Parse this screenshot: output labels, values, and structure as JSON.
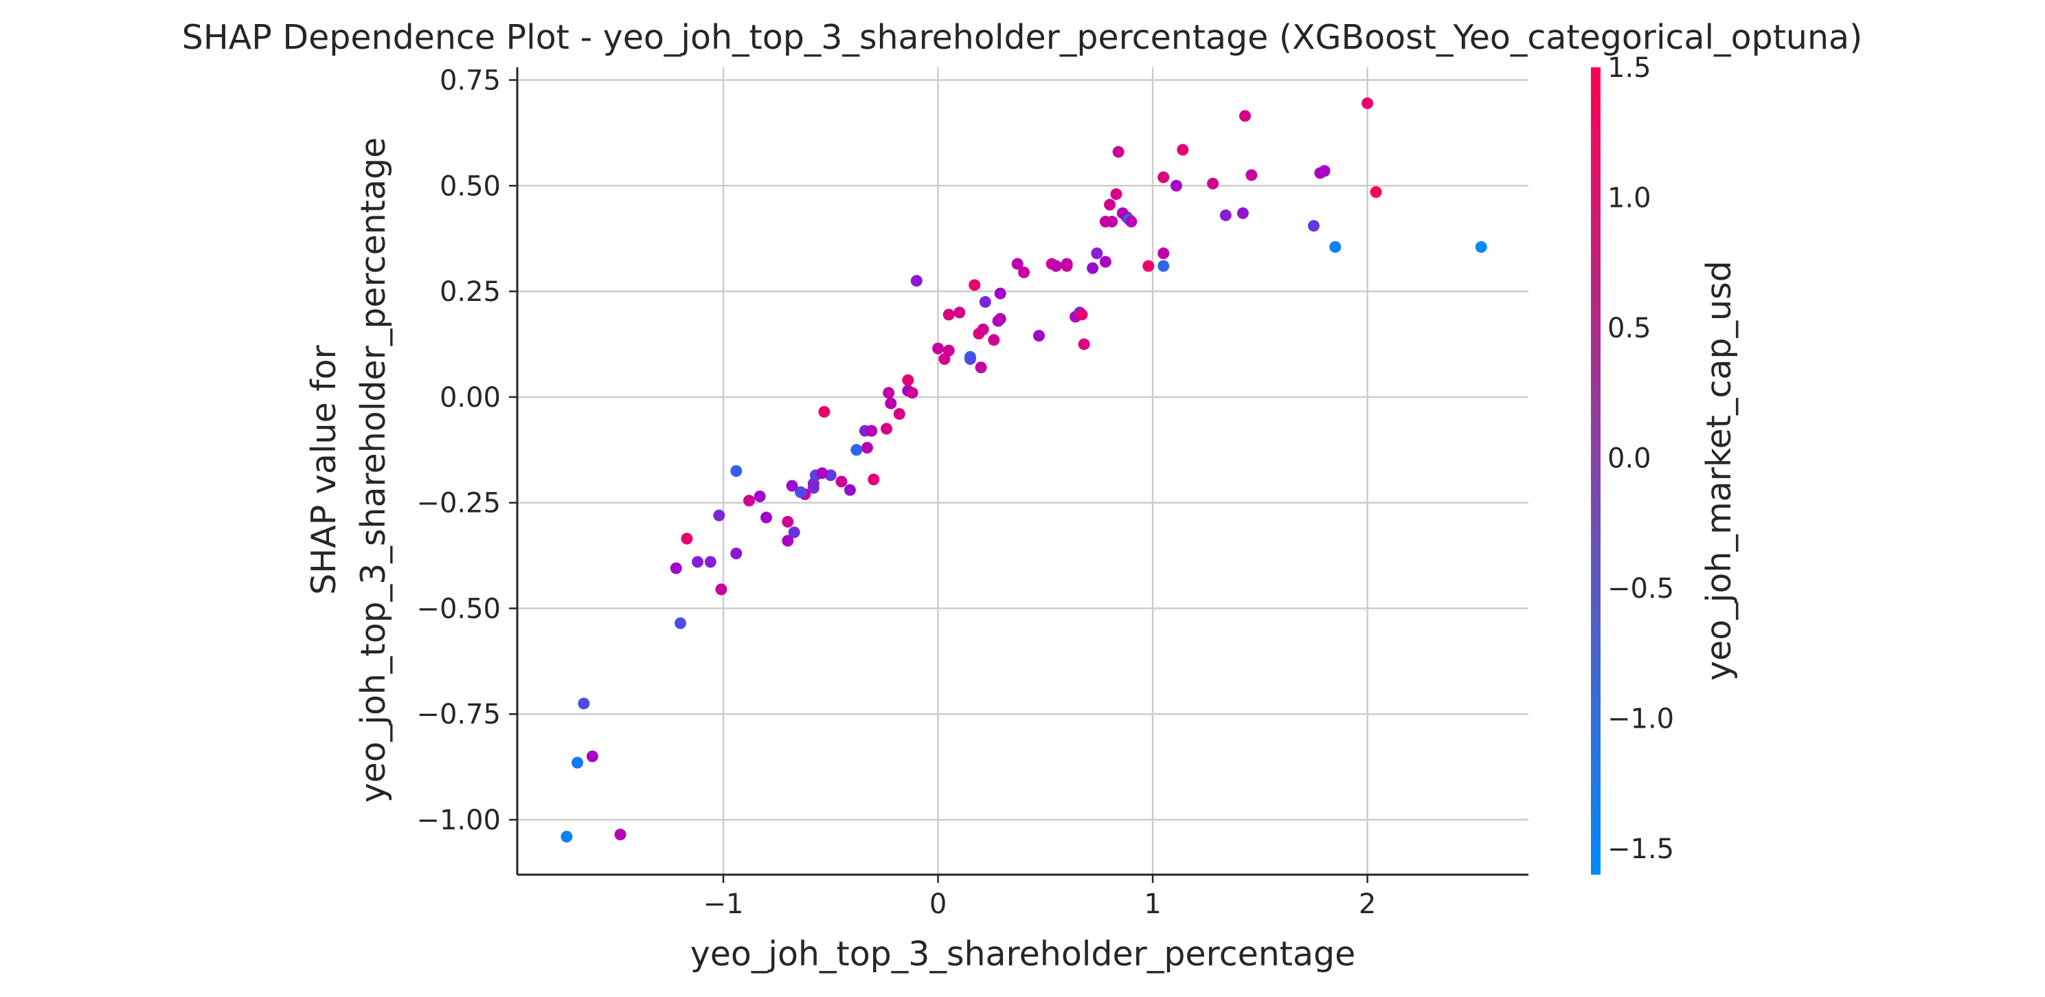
{
  "chart_data": {
    "type": "scatter",
    "title": "SHAP Dependence Plot - yeo_joh_top_3_shareholder_percentage (XGBoost_Yeo_categorical_optuna)",
    "xlabel": "yeo_joh_top_3_shareholder_percentage",
    "ylabel_line1": "SHAP value for",
    "ylabel_line2": "yeo_joh_top_3_shareholder_percentage",
    "colorbar_label": "yeo_joh_market_cap_usd",
    "xlim": [
      -1.96,
      2.75
    ],
    "ylim": [
      -1.13,
      0.78
    ],
    "grid": true,
    "x_ticks": [
      {
        "value": -1,
        "label": "−1"
      },
      {
        "value": 0,
        "label": "0"
      },
      {
        "value": 1,
        "label": "1"
      },
      {
        "value": 2,
        "label": "2"
      }
    ],
    "y_ticks": [
      {
        "value": 0.75,
        "label": "0.75"
      },
      {
        "value": 0.5,
        "label": "0.50"
      },
      {
        "value": 0.25,
        "label": "0.25"
      },
      {
        "value": 0.0,
        "label": "0.00"
      },
      {
        "value": -0.25,
        "label": "−0.25"
      },
      {
        "value": -0.5,
        "label": "−0.50"
      },
      {
        "value": -0.75,
        "label": "−0.75"
      },
      {
        "value": -1.0,
        "label": "−1.00"
      }
    ],
    "color_range": [
      -1.6,
      1.5
    ],
    "colorbar_ticks": [
      {
        "value": 1.5,
        "label": "1.5"
      },
      {
        "value": 1.0,
        "label": "1.0"
      },
      {
        "value": 0.5,
        "label": "0.5"
      },
      {
        "value": 0.0,
        "label": "0.0"
      },
      {
        "value": -0.5,
        "label": "−0.5"
      },
      {
        "value": -1.0,
        "label": "−1.0"
      },
      {
        "value": -1.5,
        "label": "−1.5"
      }
    ],
    "colormap": [
      "#008afb",
      "#ff0052"
    ],
    "points": [
      {
        "x": -1.73,
        "y": -1.04,
        "c": -1.5
      },
      {
        "x": -1.48,
        "y": -1.035,
        "c": 0.2
      },
      {
        "x": -1.68,
        "y": -0.865,
        "c": -1.4
      },
      {
        "x": -1.61,
        "y": -0.85,
        "c": -0.1
      },
      {
        "x": -1.65,
        "y": -0.725,
        "c": -0.9
      },
      {
        "x": -1.2,
        "y": -0.535,
        "c": -0.9
      },
      {
        "x": -1.01,
        "y": -0.455,
        "c": 0.5
      },
      {
        "x": -1.22,
        "y": -0.405,
        "c": -0.1
      },
      {
        "x": -1.12,
        "y": -0.39,
        "c": -0.4
      },
      {
        "x": -1.06,
        "y": -0.39,
        "c": -0.4
      },
      {
        "x": -0.94,
        "y": -0.37,
        "c": -0.3
      },
      {
        "x": -1.17,
        "y": -0.335,
        "c": 1.1
      },
      {
        "x": -0.7,
        "y": -0.34,
        "c": 0.0
      },
      {
        "x": -0.67,
        "y": -0.32,
        "c": -0.6
      },
      {
        "x": -0.7,
        "y": -0.295,
        "c": 0.7
      },
      {
        "x": -0.8,
        "y": -0.285,
        "c": -0.1
      },
      {
        "x": -1.02,
        "y": -0.28,
        "c": -0.5
      },
      {
        "x": -0.88,
        "y": -0.245,
        "c": 0.6
      },
      {
        "x": -0.83,
        "y": -0.235,
        "c": -0.1
      },
      {
        "x": -0.62,
        "y": -0.23,
        "c": 0.5
      },
      {
        "x": -0.64,
        "y": -0.225,
        "c": -0.9
      },
      {
        "x": -0.58,
        "y": -0.215,
        "c": -0.6
      },
      {
        "x": -0.68,
        "y": -0.21,
        "c": -0.2
      },
      {
        "x": -0.58,
        "y": -0.205,
        "c": -0.4
      },
      {
        "x": -0.45,
        "y": -0.2,
        "c": 0.6
      },
      {
        "x": -0.41,
        "y": -0.22,
        "c": -0.2
      },
      {
        "x": -0.3,
        "y": -0.195,
        "c": 1.0
      },
      {
        "x": -0.57,
        "y": -0.185,
        "c": -0.8
      },
      {
        "x": -0.5,
        "y": -0.185,
        "c": -0.7
      },
      {
        "x": -0.54,
        "y": -0.18,
        "c": 0.0
      },
      {
        "x": -0.94,
        "y": -0.175,
        "c": -1.1
      },
      {
        "x": -0.38,
        "y": -0.125,
        "c": -1.2
      },
      {
        "x": -0.33,
        "y": -0.12,
        "c": 0.3
      },
      {
        "x": -0.34,
        "y": -0.08,
        "c": -0.5
      },
      {
        "x": -0.31,
        "y": -0.08,
        "c": 0.2
      },
      {
        "x": -0.24,
        "y": -0.075,
        "c": 0.8
      },
      {
        "x": -0.53,
        "y": -0.035,
        "c": 1.2
      },
      {
        "x": -0.18,
        "y": -0.04,
        "c": 0.8
      },
      {
        "x": -0.22,
        "y": -0.015,
        "c": 0.3
      },
      {
        "x": -0.23,
        "y": 0.01,
        "c": 0.4
      },
      {
        "x": -0.14,
        "y": 0.015,
        "c": -0.1
      },
      {
        "x": -0.12,
        "y": 0.01,
        "c": 0.6
      },
      {
        "x": -0.14,
        "y": 0.04,
        "c": 1.0
      },
      {
        "x": 0.0,
        "y": 0.115,
        "c": 0.5
      },
      {
        "x": 0.03,
        "y": 0.09,
        "c": 0.8
      },
      {
        "x": 0.05,
        "y": 0.11,
        "c": 0.6
      },
      {
        "x": 0.15,
        "y": 0.095,
        "c": -1.3
      },
      {
        "x": 0.15,
        "y": 0.09,
        "c": -0.9
      },
      {
        "x": 0.2,
        "y": 0.07,
        "c": 0.4
      },
      {
        "x": 0.19,
        "y": 0.15,
        "c": 0.9
      },
      {
        "x": 0.21,
        "y": 0.16,
        "c": 0.7
      },
      {
        "x": 0.26,
        "y": 0.135,
        "c": 0.6
      },
      {
        "x": 0.05,
        "y": 0.195,
        "c": 0.9
      },
      {
        "x": 0.1,
        "y": 0.2,
        "c": 0.7
      },
      {
        "x": 0.17,
        "y": 0.265,
        "c": 1.1
      },
      {
        "x": 0.22,
        "y": 0.225,
        "c": -0.5
      },
      {
        "x": 0.28,
        "y": 0.18,
        "c": 0.1
      },
      {
        "x": 0.29,
        "y": 0.185,
        "c": 0.2
      },
      {
        "x": 0.29,
        "y": 0.245,
        "c": -0.1
      },
      {
        "x": -0.1,
        "y": 0.275,
        "c": -0.3
      },
      {
        "x": 0.37,
        "y": 0.315,
        "c": 0.3
      },
      {
        "x": 0.4,
        "y": 0.295,
        "c": 0.5
      },
      {
        "x": 0.47,
        "y": 0.145,
        "c": -0.1
      },
      {
        "x": 0.53,
        "y": 0.315,
        "c": 0.6
      },
      {
        "x": 0.55,
        "y": 0.31,
        "c": 0.3
      },
      {
        "x": 0.6,
        "y": 0.31,
        "c": 0.7
      },
      {
        "x": 0.6,
        "y": 0.315,
        "c": 0.4
      },
      {
        "x": 0.64,
        "y": 0.19,
        "c": 0.1
      },
      {
        "x": 0.66,
        "y": 0.2,
        "c": -0.6
      },
      {
        "x": 0.67,
        "y": 0.195,
        "c": 1.1
      },
      {
        "x": 0.68,
        "y": 0.125,
        "c": 0.9
      },
      {
        "x": 0.72,
        "y": 0.305,
        "c": -0.2
      },
      {
        "x": 0.74,
        "y": 0.34,
        "c": -0.4
      },
      {
        "x": 0.78,
        "y": 0.32,
        "c": 0.0
      },
      {
        "x": 0.78,
        "y": 0.415,
        "c": 0.5
      },
      {
        "x": 0.8,
        "y": 0.455,
        "c": 0.7
      },
      {
        "x": 0.81,
        "y": 0.415,
        "c": 0.4
      },
      {
        "x": 0.83,
        "y": 0.48,
        "c": 0.8
      },
      {
        "x": 0.84,
        "y": 0.58,
        "c": 0.6
      },
      {
        "x": 0.86,
        "y": 0.435,
        "c": 0.1
      },
      {
        "x": 0.88,
        "y": 0.425,
        "c": 0.2
      },
      {
        "x": 0.89,
        "y": 0.42,
        "c": -1.3
      },
      {
        "x": 0.9,
        "y": 0.415,
        "c": 0.2
      },
      {
        "x": 0.98,
        "y": 0.31,
        "c": 1.2
      },
      {
        "x": 1.05,
        "y": 0.31,
        "c": -1.2
      },
      {
        "x": 1.05,
        "y": 0.34,
        "c": 0.3
      },
      {
        "x": 1.05,
        "y": 0.52,
        "c": 0.9
      },
      {
        "x": 1.11,
        "y": 0.5,
        "c": -0.1
      },
      {
        "x": 1.14,
        "y": 0.585,
        "c": 1.1
      },
      {
        "x": 1.28,
        "y": 0.505,
        "c": 0.7
      },
      {
        "x": 1.34,
        "y": 0.43,
        "c": -0.4
      },
      {
        "x": 1.42,
        "y": 0.435,
        "c": -0.3
      },
      {
        "x": 1.43,
        "y": 0.665,
        "c": 0.8
      },
      {
        "x": 1.46,
        "y": 0.525,
        "c": 0.5
      },
      {
        "x": 1.75,
        "y": 0.405,
        "c": -0.7
      },
      {
        "x": 1.78,
        "y": 0.53,
        "c": 0.1
      },
      {
        "x": 1.8,
        "y": 0.535,
        "c": -0.1
      },
      {
        "x": 1.85,
        "y": 0.355,
        "c": -1.5
      },
      {
        "x": 2.0,
        "y": 0.695,
        "c": 1.1
      },
      {
        "x": 2.04,
        "y": 0.485,
        "c": 1.3
      },
      {
        "x": 2.53,
        "y": 0.355,
        "c": -1.6
      }
    ]
  }
}
